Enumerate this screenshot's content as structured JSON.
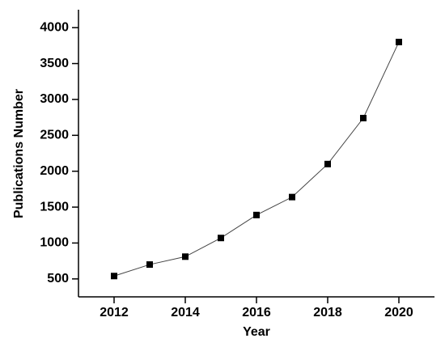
{
  "chart_data": {
    "type": "line",
    "x_label": "Year",
    "y_label": "Publications Number",
    "x": [
      2012,
      2013,
      2014,
      2015,
      2016,
      2017,
      2018,
      2019,
      2020
    ],
    "series": [
      {
        "color": "#000000",
        "values": [
          540,
          700,
          810,
          1070,
          1390,
          1640,
          2100,
          2740,
          3800
        ]
      }
    ],
    "xlim": [
      2011,
      2021
    ],
    "xticks": [
      2012,
      2014,
      2016,
      2018,
      2020
    ],
    "ylim": [
      250,
      4250
    ],
    "yticks": [
      500,
      1000,
      1500,
      2000,
      2500,
      3000,
      3500,
      4000
    ]
  }
}
